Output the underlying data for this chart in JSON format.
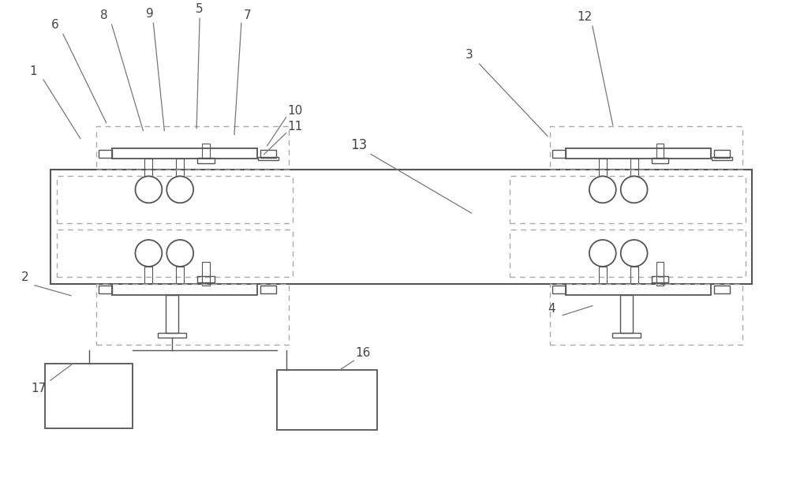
{
  "bg_color": "#ffffff",
  "line_color": "#aaaaaa",
  "dark_line": "#555555",
  "figsize": [
    10.0,
    6.25
  ],
  "dpi": 100
}
